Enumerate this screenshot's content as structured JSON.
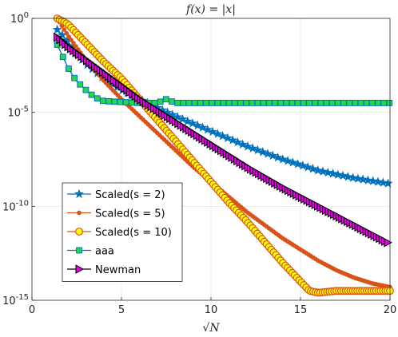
{
  "chart_data": {
    "type": "line",
    "title": "f(x) = |x|",
    "xlabel": "√N",
    "ylabel": "",
    "xlim": [
      0,
      20
    ],
    "ylim_exp": [
      -15,
      0
    ],
    "yscale": "log",
    "grid": true,
    "legend_position": "bottom-left",
    "x_ticks": [
      0,
      5,
      10,
      15,
      20
    ],
    "y_ticks": [
      {
        "exp": 0,
        "label": "10",
        "sup": "0"
      },
      {
        "exp": -5,
        "label": "10",
        "sup": "-5"
      },
      {
        "exp": -10,
        "label": "10",
        "sup": "-10"
      },
      {
        "exp": -15,
        "label": "10",
        "sup": "-15"
      }
    ],
    "series": [
      {
        "name": "Scaled(s = 2)",
        "color": "#0072BD",
        "marker": "star",
        "x": [
          1.41,
          2,
          2.45,
          3,
          4,
          5,
          6,
          8,
          10,
          12,
          14,
          16,
          18,
          20
        ],
        "log10_y": [
          -0.6,
          -1.2,
          -1.8,
          -2.4,
          -3.2,
          -3.8,
          -4.3,
          -5.2,
          -6.0,
          -6.8,
          -7.5,
          -8.1,
          -8.5,
          -8.8
        ]
      },
      {
        "name": "Scaled(s = 5)",
        "color": "#D95319",
        "marker": "dot",
        "x": [
          1.41,
          2,
          3,
          4,
          5,
          6,
          7,
          8,
          9,
          10,
          11,
          12,
          13,
          14,
          15,
          16,
          17,
          18,
          19,
          20
        ],
        "log10_y": [
          0,
          -0.9,
          -2.2,
          -3.3,
          -4.3,
          -5.2,
          -6.1,
          -7.0,
          -7.9,
          -8.7,
          -9.5,
          -10.3,
          -11.0,
          -11.7,
          -12.3,
          -12.9,
          -13.4,
          -13.8,
          -14.1,
          -14.3
        ]
      },
      {
        "name": "Scaled(s = 10)",
        "color": "#D95319",
        "fill": "#FFFF00",
        "marker": "circle",
        "x": [
          1.41,
          2,
          3,
          4,
          5,
          6,
          7,
          8,
          9,
          10,
          11,
          12,
          13,
          14,
          15,
          15.5,
          16,
          17,
          18,
          19,
          20
        ],
        "log10_y": [
          0,
          -0.3,
          -1.3,
          -2.3,
          -3.2,
          -4.3,
          -5.4,
          -6.5,
          -7.6,
          -8.7,
          -9.8,
          -10.8,
          -11.9,
          -13.0,
          -14.0,
          -14.5,
          -14.6,
          -14.5,
          -14.5,
          -14.5,
          -14.5
        ]
      },
      {
        "name": "aaa",
        "color": "#0072BD",
        "fill": "#27D64B",
        "marker": "square",
        "x": [
          1.41,
          2,
          2.45,
          3,
          3.5,
          4,
          5,
          6,
          7,
          7.5,
          8,
          10,
          12,
          14,
          16,
          18,
          20
        ],
        "log10_y": [
          -1.4,
          -2.6,
          -3.3,
          -3.8,
          -4.2,
          -4.4,
          -4.45,
          -4.5,
          -4.5,
          -4.3,
          -4.5,
          -4.5,
          -4.5,
          -4.5,
          -4.5,
          -4.5,
          -4.5
        ]
      },
      {
        "name": "Newman",
        "color": "#000000",
        "fill": "#E600E6",
        "marker": "triangle-right",
        "x": [
          1.41,
          2,
          3,
          4,
          5,
          6,
          7,
          8,
          10,
          12,
          14,
          16,
          18,
          20
        ],
        "log10_y": [
          -1.0,
          -1.5,
          -2.2,
          -2.9,
          -3.6,
          -4.3,
          -4.9,
          -5.5,
          -6.7,
          -7.9,
          -9.0,
          -10.0,
          -11.0,
          -12.0
        ]
      }
    ]
  }
}
